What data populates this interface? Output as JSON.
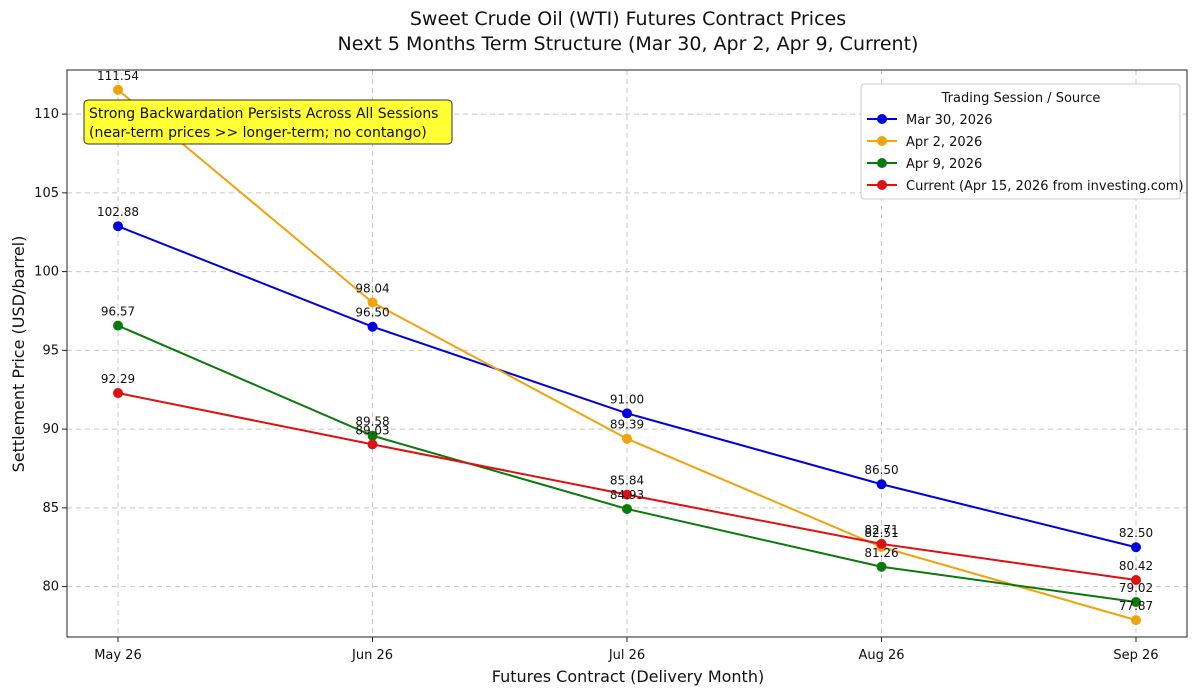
{
  "chart_data": {
    "type": "line",
    "title": "Sweet Crude Oil (WTI) Futures Contract Prices",
    "subtitle": "Next 5 Months Term Structure (Mar 30, Apr 2, Apr 9, Current)",
    "xlabel": "Futures Contract (Delivery Month)",
    "ylabel": "Settlement Price (USD/barrel)",
    "categories": [
      "May 26",
      "Jun 26",
      "Jul 26",
      "Aug 26",
      "Sep 26"
    ],
    "ylim": [
      76.8,
      112.8
    ],
    "yticks": [
      80,
      85,
      90,
      95,
      100,
      105,
      110
    ],
    "grid": true,
    "legend": {
      "title": "Trading Session / Source",
      "placement": "top-right"
    },
    "series": [
      {
        "name": "Mar 30, 2026",
        "color": "#0000dd",
        "values": [
          102.88,
          96.5,
          91.0,
          86.5,
          82.5
        ]
      },
      {
        "name": "Apr 2, 2026",
        "color": "#f0a30a",
        "values": [
          111.54,
          98.04,
          89.39,
          82.51,
          77.87
        ]
      },
      {
        "name": "Apr 9, 2026",
        "color": "#0a7a0a",
        "values": [
          96.57,
          89.58,
          84.93,
          81.26,
          79.02
        ]
      },
      {
        "name": "Current (Apr 15, 2026 from investing.com)",
        "color": "#dd1111",
        "values": [
          92.29,
          89.03,
          85.84,
          82.71,
          80.42
        ]
      }
    ],
    "annotation": {
      "lines": [
        "Strong Backwardation Persists Across All Sessions",
        "(near-term prices >> longer-term; no contango)"
      ],
      "background": "#ffff33"
    }
  }
}
